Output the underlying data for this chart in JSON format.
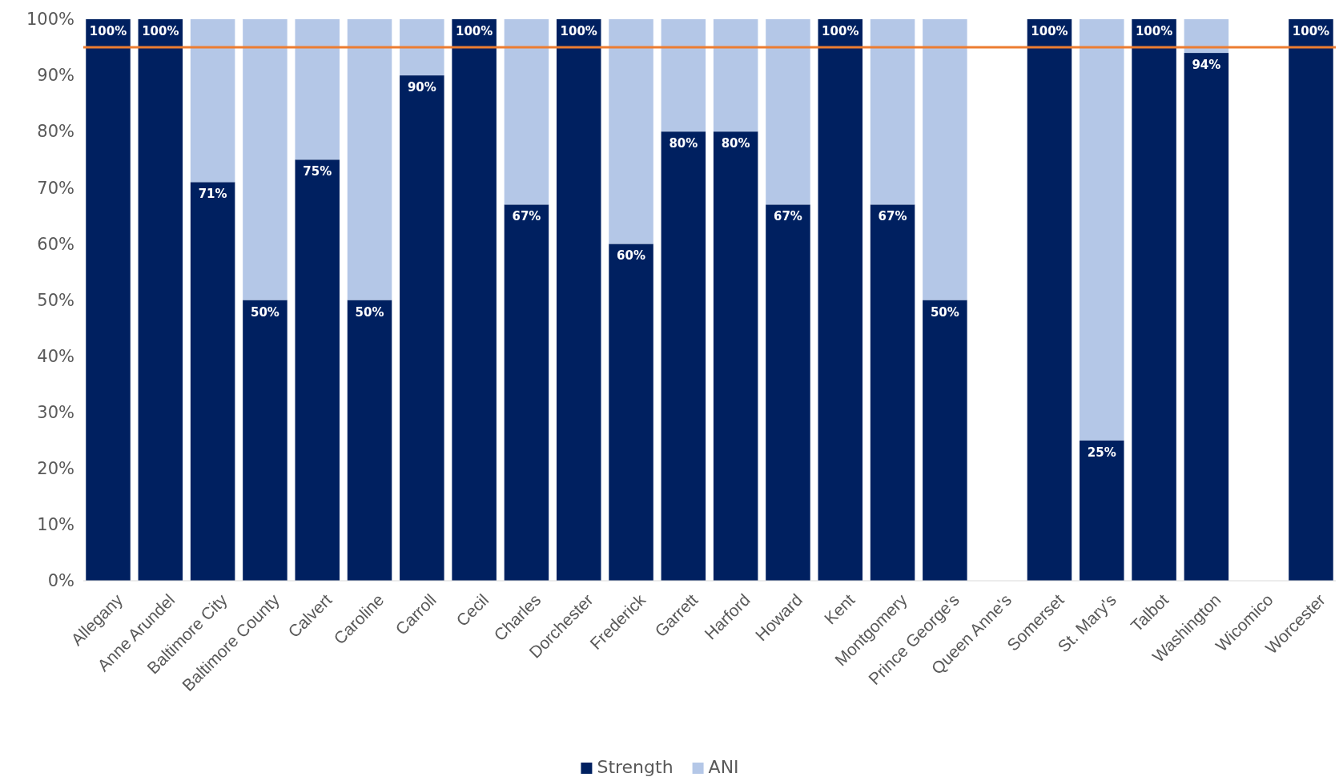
{
  "chart_data": {
    "type": "bar",
    "stacked": true,
    "categories": [
      "Allegany",
      "Anne Arundel",
      "Baltimore City",
      "Baltimore County",
      "Calvert",
      "Caroline",
      "Carroll",
      "Cecil",
      "Charles",
      "Dorchester",
      "Frederick",
      "Garrett",
      "Harford",
      "Howard",
      "Kent",
      "Montgomery",
      "Prince George's",
      "Queen Anne's",
      "Somerset",
      "St. Mary's",
      "Talbot",
      "Washington",
      "Wicomico",
      "Worcester"
    ],
    "series": [
      {
        "name": "Strength",
        "color": "#002060",
        "values": [
          100,
          100,
          71,
          50,
          75,
          50,
          90,
          100,
          67,
          100,
          60,
          80,
          80,
          67,
          100,
          67,
          50,
          null,
          100,
          25,
          100,
          94,
          null,
          100
        ],
        "value_labels": [
          "100%",
          "100%",
          "71%",
          "50%",
          "75%",
          "50%",
          "90%",
          "100%",
          "67%",
          "100%",
          "60%",
          "80%",
          "80%",
          "67%",
          "100%",
          "67%",
          "50%",
          null,
          "100%",
          "25%",
          "100%",
          "94%",
          null,
          "100%"
        ]
      },
      {
        "name": "ANI",
        "color": "#b4c7e7",
        "values": [
          0,
          0,
          29,
          50,
          25,
          50,
          10,
          0,
          33,
          0,
          40,
          20,
          20,
          33,
          0,
          33,
          50,
          null,
          0,
          75,
          0,
          6,
          null,
          0
        ]
      }
    ],
    "ylim": [
      0,
      100
    ],
    "yticks": [
      {
        "value": 0,
        "label": "0%"
      },
      {
        "value": 10,
        "label": "10%"
      },
      {
        "value": 20,
        "label": "20%"
      },
      {
        "value": 30,
        "label": "30%"
      },
      {
        "value": 40,
        "label": "40%"
      },
      {
        "value": 50,
        "label": "50%"
      },
      {
        "value": 60,
        "label": "60%"
      },
      {
        "value": 70,
        "label": "70%"
      },
      {
        "value": 80,
        "label": "80%"
      },
      {
        "value": 90,
        "label": "90%"
      },
      {
        "value": 100,
        "label": "100%"
      }
    ],
    "ref_lines": [
      {
        "axis": "y",
        "value": 95,
        "color": "#ed7d31"
      }
    ],
    "grid": false,
    "legend": "bottom"
  }
}
